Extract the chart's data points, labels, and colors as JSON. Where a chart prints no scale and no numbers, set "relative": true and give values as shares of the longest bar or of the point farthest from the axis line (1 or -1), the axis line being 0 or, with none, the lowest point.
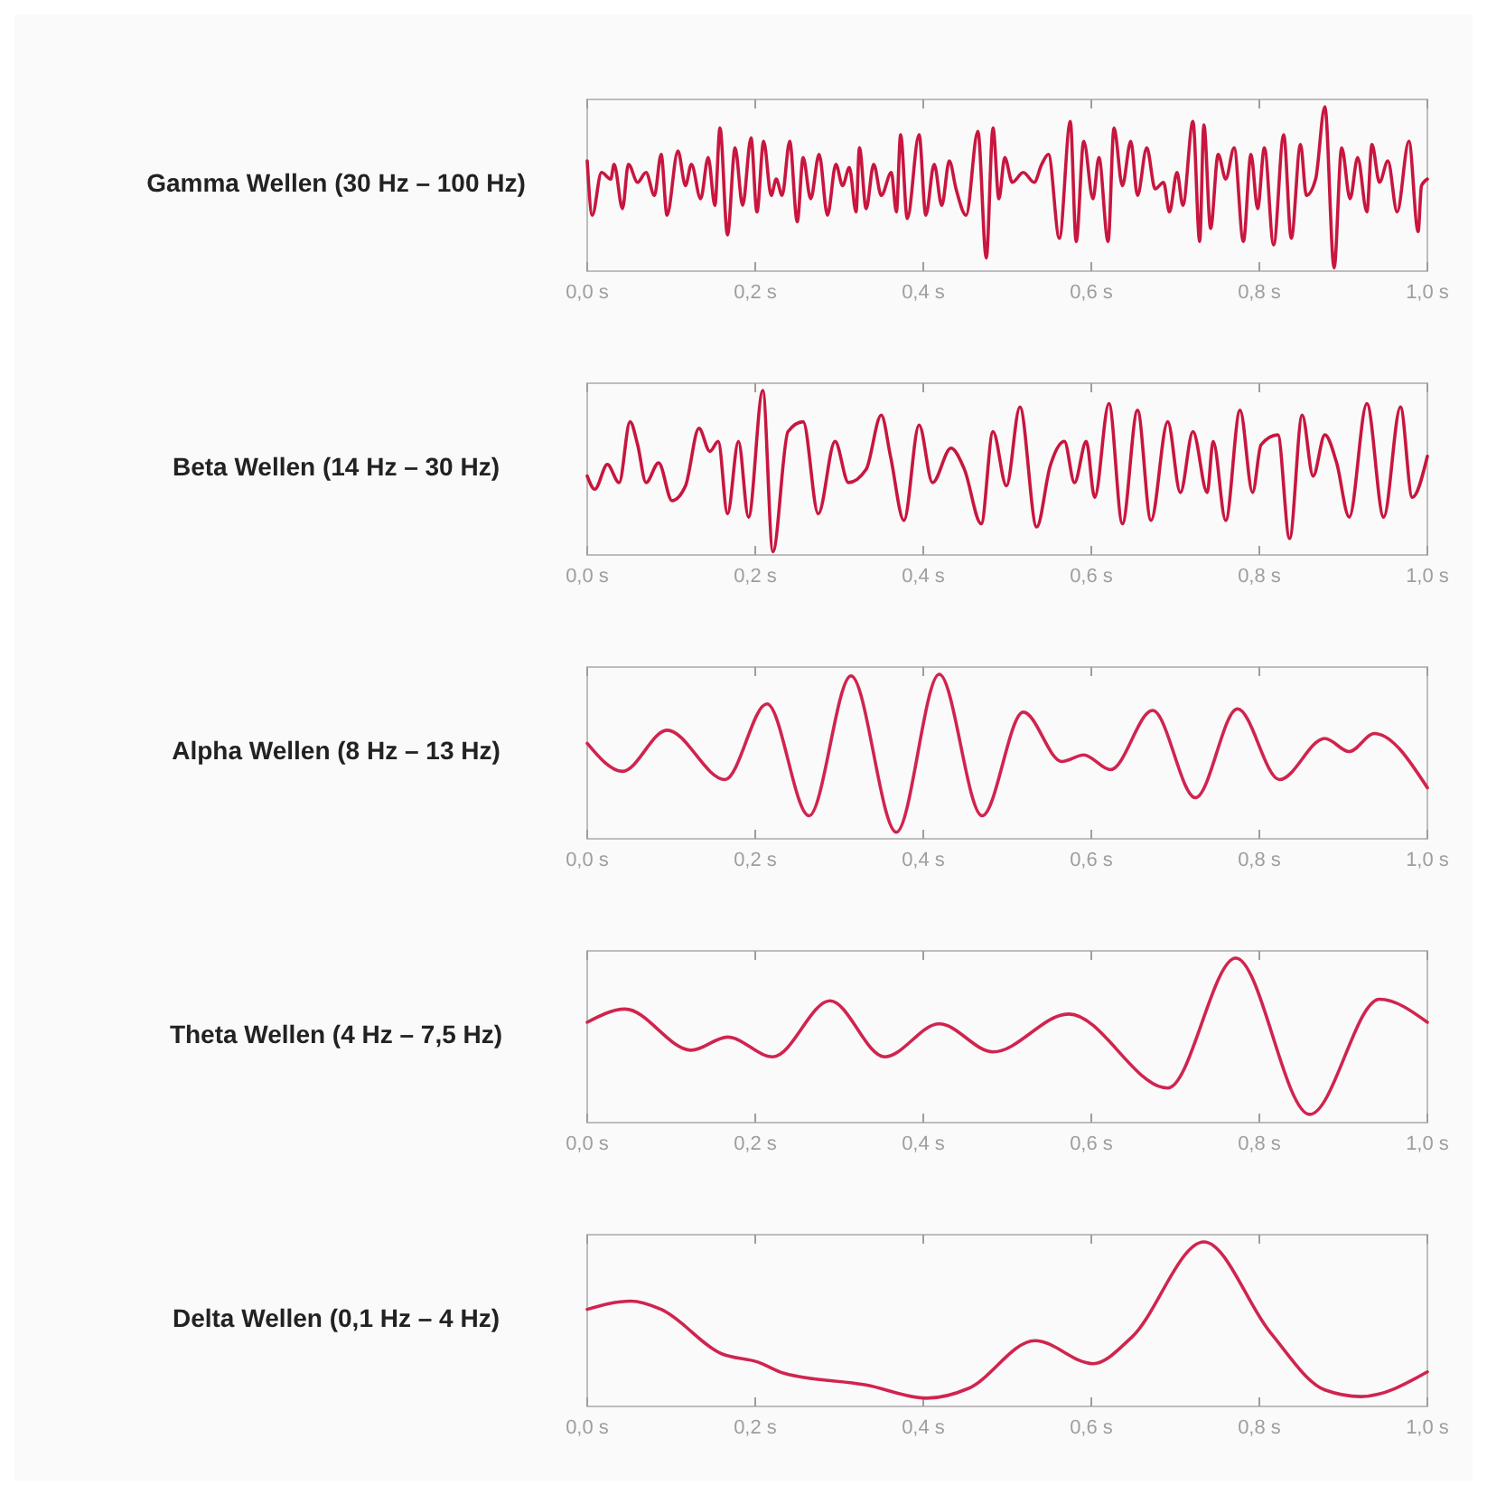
{
  "chart_data": [
    {
      "type": "line",
      "title": "Gamma Wellen (30 Hz – 100 Hz)",
      "relative": true,
      "xlim": [
        0,
        1
      ],
      "xticks": [
        {
          "value": 0,
          "label": "0,0 s"
        },
        {
          "value": 0.2,
          "label": "0,2 s"
        },
        {
          "value": 0.4,
          "label": "0,4 s"
        },
        {
          "value": 0.6,
          "label": "0,6 s"
        },
        {
          "value": 0.8,
          "label": "0,8 s"
        },
        {
          "value": 1,
          "label": "1,0 s"
        }
      ],
      "x": [
        0,
        0.006,
        0.017,
        0.028,
        0.032,
        0.042,
        0.049,
        0.06,
        0.07,
        0.08,
        0.088,
        0.095,
        0.108,
        0.117,
        0.124,
        0.135,
        0.144,
        0.152,
        0.158,
        0.167,
        0.176,
        0.185,
        0.195,
        0.202,
        0.21,
        0.219,
        0.225,
        0.232,
        0.241,
        0.25,
        0.257,
        0.266,
        0.276,
        0.286,
        0.296,
        0.304,
        0.312,
        0.32,
        0.324,
        0.332,
        0.341,
        0.35,
        0.362,
        0.368,
        0.373,
        0.381,
        0.395,
        0.403,
        0.413,
        0.422,
        0.431,
        0.439,
        0.451,
        0.465,
        0.475,
        0.483,
        0.49,
        0.497,
        0.506,
        0.519,
        0.532,
        0.541,
        0.549,
        0.562,
        0.575,
        0.582,
        0.591,
        0.602,
        0.609,
        0.62,
        0.627,
        0.637,
        0.647,
        0.655,
        0.666,
        0.676,
        0.686,
        0.693,
        0.702,
        0.709,
        0.721,
        0.729,
        0.734,
        0.742,
        0.751,
        0.76,
        0.77,
        0.781,
        0.79,
        0.798,
        0.806,
        0.817,
        0.829,
        0.838,
        0.849,
        0.856,
        0.867,
        0.878,
        0.889,
        0.898,
        0.908,
        0.917,
        0.928,
        0.934,
        0.943,
        0.953,
        0.964,
        0.978,
        0.989,
        0.993,
        1
      ],
      "series": [
        {
          "color": "#c8163f",
          "values": [
            0.67,
            0.34,
            0.6,
            0.56,
            0.65,
            0.38,
            0.65,
            0.54,
            0.6,
            0.46,
            0.71,
            0.34,
            0.73,
            0.52,
            0.65,
            0.44,
            0.69,
            0.4,
            0.87,
            0.22,
            0.75,
            0.4,
            0.81,
            0.36,
            0.79,
            0.46,
            0.56,
            0.46,
            0.79,
            0.3,
            0.69,
            0.44,
            0.71,
            0.34,
            0.65,
            0.52,
            0.63,
            0.36,
            0.75,
            0.38,
            0.65,
            0.46,
            0.6,
            0.36,
            0.83,
            0.32,
            0.83,
            0.34,
            0.65,
            0.4,
            0.67,
            0.5,
            0.34,
            0.85,
            0.08,
            0.87,
            0.44,
            0.69,
            0.54,
            0.6,
            0.54,
            0.65,
            0.71,
            0.2,
            0.91,
            0.18,
            0.79,
            0.44,
            0.69,
            0.18,
            0.87,
            0.52,
            0.79,
            0.46,
            0.75,
            0.5,
            0.54,
            0.36,
            0.6,
            0.4,
            0.91,
            0.18,
            0.89,
            0.26,
            0.71,
            0.56,
            0.75,
            0.18,
            0.71,
            0.38,
            0.75,
            0.16,
            0.83,
            0.2,
            0.77,
            0.46,
            0.56,
            1,
            0.02,
            0.75,
            0.44,
            0.69,
            0.36,
            0.77,
            0.54,
            0.67,
            0.36,
            0.79,
            0.24,
            0.52,
            0.56
          ]
        }
      ]
    },
    {
      "type": "line",
      "title": "Beta Wellen (14 Hz – 30 Hz)",
      "relative": true,
      "xlim": [
        0,
        1
      ],
      "xticks": [
        {
          "value": 0,
          "label": "0,0 s"
        },
        {
          "value": 0.2,
          "label": "0,2 s"
        },
        {
          "value": 0.4,
          "label": "0,4 s"
        },
        {
          "value": 0.6,
          "label": "0,6 s"
        },
        {
          "value": 0.8,
          "label": "0,8 s"
        },
        {
          "value": 1,
          "label": "1,0 s"
        }
      ],
      "x": [
        0,
        0.009,
        0.024,
        0.038,
        0.051,
        0.06,
        0.07,
        0.085,
        0.101,
        0.117,
        0.133,
        0.146,
        0.156,
        0.167,
        0.18,
        0.192,
        0.209,
        0.221,
        0.239,
        0.257,
        0.275,
        0.295,
        0.311,
        0.332,
        0.35,
        0.361,
        0.377,
        0.395,
        0.411,
        0.433,
        0.449,
        0.469,
        0.483,
        0.499,
        0.515,
        0.535,
        0.551,
        0.568,
        0.58,
        0.594,
        0.604,
        0.621,
        0.637,
        0.655,
        0.671,
        0.691,
        0.706,
        0.721,
        0.738,
        0.745,
        0.76,
        0.777,
        0.792,
        0.802,
        0.822,
        0.836,
        0.851,
        0.864,
        0.878,
        0.892,
        0.907,
        0.928,
        0.948,
        0.968,
        0.982,
        1
      ],
      "series": [
        {
          "color": "#c8163f",
          "values": [
            0.48,
            0.4,
            0.55,
            0.44,
            0.81,
            0.67,
            0.44,
            0.56,
            0.33,
            0.42,
            0.77,
            0.63,
            0.69,
            0.25,
            0.69,
            0.23,
            1,
            0.02,
            0.75,
            0.81,
            0.25,
            0.69,
            0.44,
            0.52,
            0.85,
            0.6,
            0.21,
            0.79,
            0.44,
            0.65,
            0.52,
            0.19,
            0.75,
            0.42,
            0.9,
            0.17,
            0.54,
            0.69,
            0.44,
            0.69,
            0.35,
            0.92,
            0.19,
            0.88,
            0.21,
            0.81,
            0.38,
            0.75,
            0.38,
            0.69,
            0.21,
            0.88,
            0.38,
            0.67,
            0.73,
            0.1,
            0.85,
            0.48,
            0.73,
            0.56,
            0.23,
            0.92,
            0.23,
            0.9,
            0.35,
            0.6
          ]
        }
      ]
    },
    {
      "type": "line",
      "title": "Alpha Wellen (8 Hz – 13 Hz)",
      "relative": true,
      "xlim": [
        0,
        1
      ],
      "xticks": [
        {
          "value": 0,
          "label": "0,0 s"
        },
        {
          "value": 0.2,
          "label": "0,2 s"
        },
        {
          "value": 0.4,
          "label": "0,4 s"
        },
        {
          "value": 0.6,
          "label": "0,6 s"
        },
        {
          "value": 0.8,
          "label": "0,8 s"
        },
        {
          "value": 1,
          "label": "1,0 s"
        }
      ],
      "x": [
        0,
        0.042,
        0.095,
        0.164,
        0.214,
        0.264,
        0.314,
        0.368,
        0.419,
        0.47,
        0.519,
        0.565,
        0.591,
        0.623,
        0.673,
        0.724,
        0.774,
        0.824,
        0.878,
        0.907,
        0.937,
        1
      ],
      "series": [
        {
          "color": "#d0244f",
          "values": [
            0.58,
            0.41,
            0.66,
            0.36,
            0.82,
            0.14,
            0.99,
            0.04,
            1,
            0.14,
            0.77,
            0.47,
            0.51,
            0.42,
            0.78,
            0.25,
            0.79,
            0.36,
            0.61,
            0.53,
            0.64,
            0.31
          ]
        }
      ]
    },
    {
      "type": "line",
      "title": "Theta Wellen (4 Hz – 7,5 Hz)",
      "relative": true,
      "xlim": [
        0,
        1
      ],
      "xticks": [
        {
          "value": 0,
          "label": "0,0 s"
        },
        {
          "value": 0.2,
          "label": "0,2 s"
        },
        {
          "value": 0.4,
          "label": "0,4 s"
        },
        {
          "value": 0.6,
          "label": "0,6 s"
        },
        {
          "value": 0.8,
          "label": "0,8 s"
        },
        {
          "value": 1,
          "label": "1,0 s"
        }
      ],
      "x": [
        0,
        0.045,
        0.124,
        0.167,
        0.221,
        0.289,
        0.354,
        0.419,
        0.483,
        0.573,
        0.691,
        0.772,
        0.86,
        0.943,
        1
      ],
      "series": [
        {
          "color": "#d0244f",
          "values": [
            0.61,
            0.69,
            0.44,
            0.52,
            0.4,
            0.74,
            0.4,
            0.6,
            0.43,
            0.66,
            0.21,
            1,
            0.05,
            0.75,
            0.61
          ]
        }
      ]
    },
    {
      "type": "line",
      "title": "Delta Wellen (0,1 Hz – 4 Hz)",
      "relative": true,
      "xlim": [
        0,
        1
      ],
      "xticks": [
        {
          "value": 0,
          "label": "0,0 s"
        },
        {
          "value": 0.2,
          "label": "0,2 s"
        },
        {
          "value": 0.4,
          "label": "0,4 s"
        },
        {
          "value": 0.6,
          "label": "0,6 s"
        },
        {
          "value": 0.8,
          "label": "0,8 s"
        },
        {
          "value": 1,
          "label": "1,0 s"
        }
      ],
      "x": [
        0,
        0.052,
        0.088,
        0.16,
        0.203,
        0.235,
        0.332,
        0.404,
        0.454,
        0.533,
        0.602,
        0.648,
        0.734,
        0.813,
        0.878,
        0.921,
        1
      ],
      "series": [
        {
          "color": "#d0244f",
          "values": [
            0.59,
            0.64,
            0.59,
            0.32,
            0.27,
            0.2,
            0.13,
            0.05,
            0.11,
            0.4,
            0.26,
            0.42,
            1,
            0.45,
            0.1,
            0.06,
            0.21
          ]
        }
      ]
    }
  ]
}
